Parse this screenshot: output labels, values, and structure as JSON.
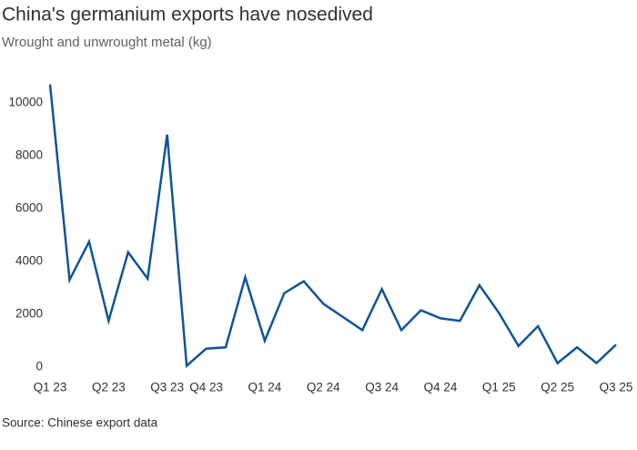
{
  "chart_data": {
    "type": "line",
    "title": "China's germanium exports have nosedived",
    "subtitle": "Wrought and unwrought metal (kg)",
    "source": "Source: Chinese export data",
    "categories": [
      "Q1 23",
      null,
      null,
      "Q2 23",
      null,
      null,
      "Q3 23",
      null,
      "Q4 23",
      null,
      null,
      "Q1 24",
      null,
      null,
      "Q2 24",
      null,
      null,
      "Q3 24",
      null,
      null,
      "Q4 24",
      null,
      null,
      "Q1 25",
      null,
      null,
      "Q2 25",
      null,
      null,
      "Q3 25"
    ],
    "series": [
      {
        "name": "Exports",
        "color": "#0f5499",
        "values": [
          10700,
          3300,
          4750,
          1750,
          4350,
          3350,
          8800,
          50,
          700,
          750,
          3400,
          1000,
          2800,
          3250,
          2400,
          1900,
          1400,
          2950,
          1400,
          2150,
          1850,
          1750,
          3100,
          2050,
          800,
          1550,
          150,
          750,
          150,
          850
        ]
      }
    ],
    "ylim": [
      0,
      10700
    ],
    "yticks": [
      0,
      2000,
      4000,
      6000,
      8000,
      10000
    ],
    "grid": false
  }
}
